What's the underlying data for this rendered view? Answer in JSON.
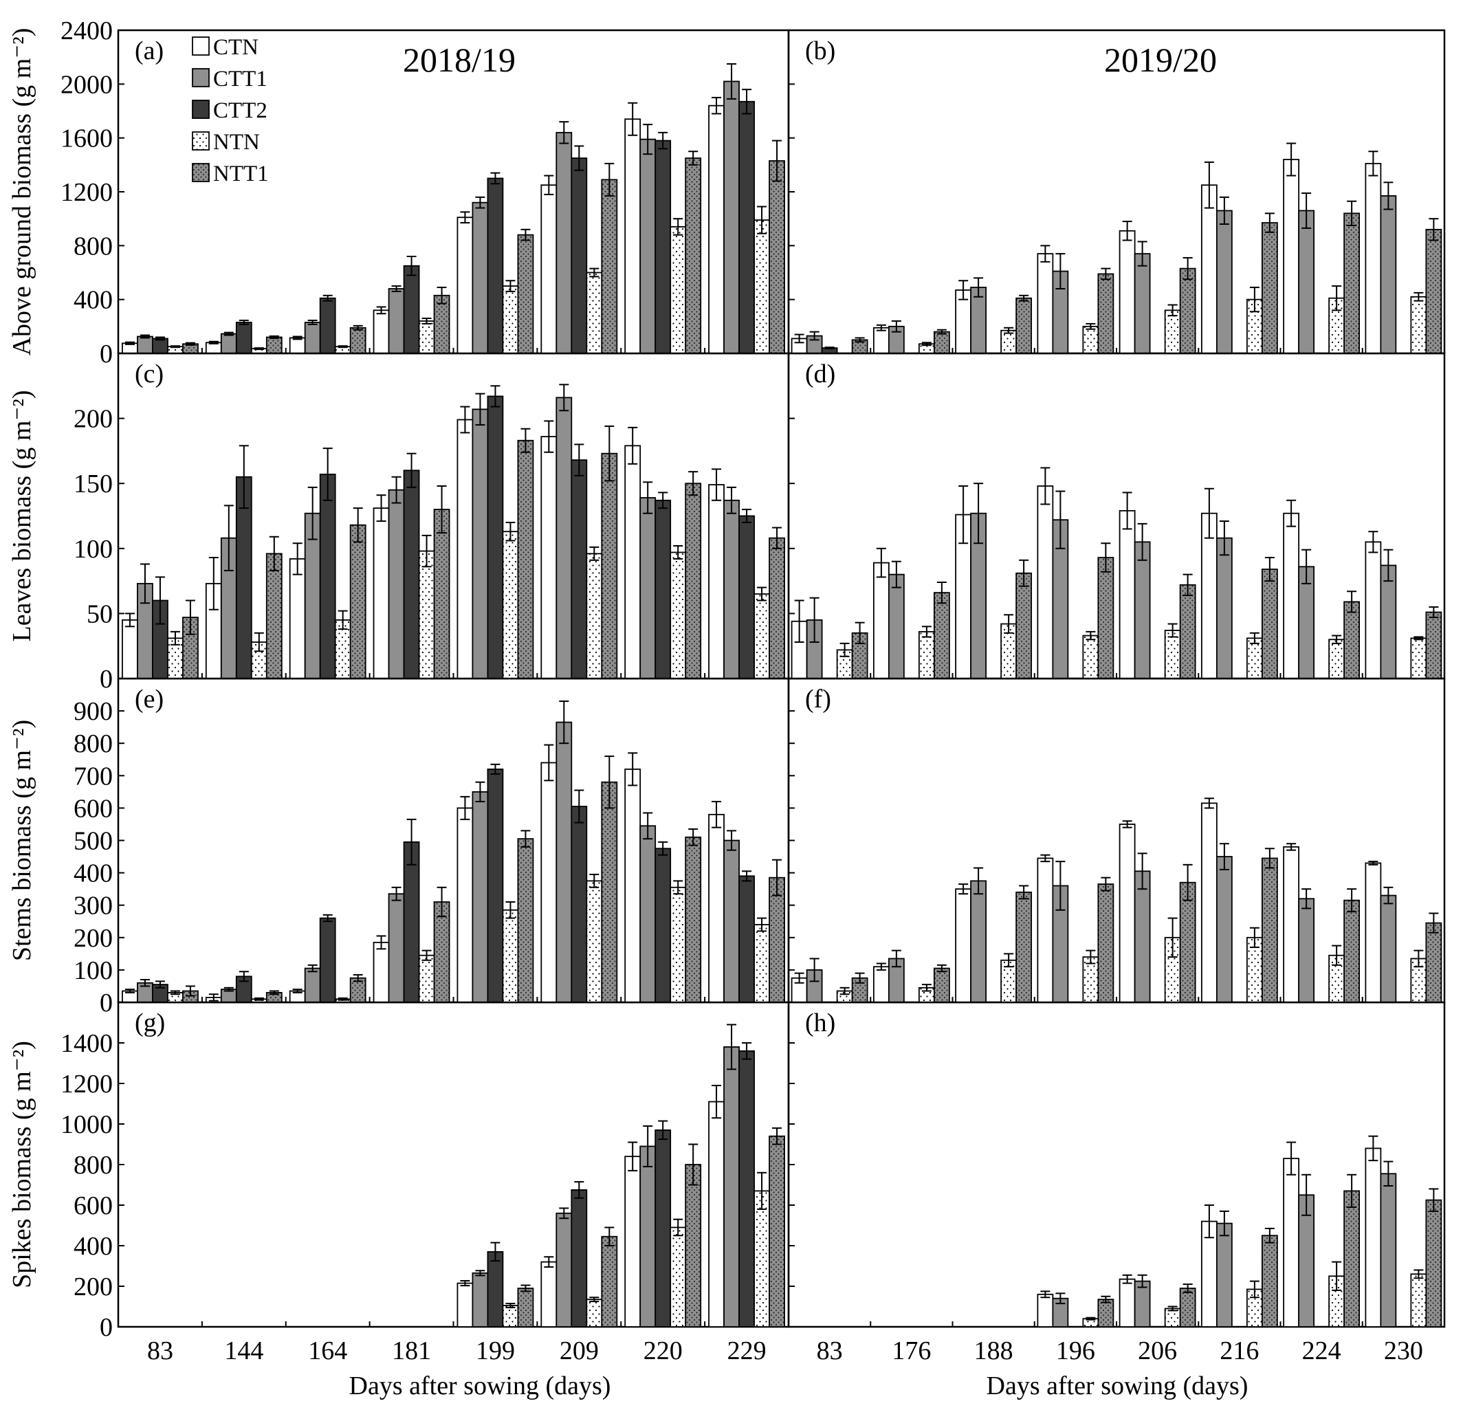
{
  "series_styles": [
    {
      "name": "CTN",
      "fill": "#ffffff",
      "pattern": "none"
    },
    {
      "name": "CTT1",
      "fill": "#8f8f8f",
      "pattern": "none"
    },
    {
      "name": "CTT2",
      "fill": "#3a3a3a",
      "pattern": "none"
    },
    {
      "name": "NTN",
      "fill": "#ffffff",
      "pattern": "dots-sparse"
    },
    {
      "name": "NTT1",
      "fill": "#8f8f8f",
      "pattern": "dots-dense"
    }
  ],
  "xlabel": "Days after sowing (days)",
  "chart_data": [
    {
      "id": "a",
      "panel_label": "(a)",
      "year_label": "2018/19",
      "type": "bar",
      "ylabel": "Above ground biomass (g m⁻²)",
      "ylim": [
        0,
        2400
      ],
      "yticks": [
        0,
        400,
        800,
        1200,
        1600,
        2000,
        2400
      ],
      "categories": [
        "83",
        "144",
        "164",
        "181",
        "199",
        "209",
        "220",
        "229"
      ],
      "series": [
        {
          "name": "CTN",
          "values": [
            75,
            80,
            115,
            320,
            1010,
            1250,
            1740,
            1840
          ],
          "errors": [
            8,
            8,
            10,
            25,
            40,
            70,
            120,
            60
          ]
        },
        {
          "name": "CTT1",
          "values": [
            125,
            145,
            230,
            480,
            1120,
            1640,
            1590,
            2020
          ],
          "errors": [
            10,
            10,
            15,
            20,
            40,
            80,
            110,
            130
          ]
        },
        {
          "name": "CTT2",
          "values": [
            110,
            230,
            410,
            650,
            1300,
            1450,
            1580,
            1870
          ],
          "errors": [
            10,
            15,
            20,
            70,
            40,
            90,
            60,
            90
          ]
        },
        {
          "name": "NTN",
          "values": [
            50,
            35,
            50,
            240,
            500,
            600,
            940,
            990
          ],
          "errors": [
            5,
            5,
            5,
            20,
            40,
            30,
            60,
            100
          ]
        },
        {
          "name": "NTT1",
          "values": [
            70,
            120,
            190,
            430,
            880,
            1290,
            1450,
            1430
          ],
          "errors": [
            8,
            8,
            15,
            60,
            40,
            120,
            50,
            150
          ]
        }
      ]
    },
    {
      "id": "b",
      "panel_label": "(b)",
      "year_label": "2019/20",
      "type": "bar",
      "ylabel": "",
      "ylim": [
        0,
        2400
      ],
      "yticks": [
        0,
        400,
        800,
        1200,
        1600,
        2000,
        2400
      ],
      "categories": [
        "83",
        "176",
        "188",
        "196",
        "206",
        "216",
        "224",
        "230"
      ],
      "series": [
        {
          "name": "CTN",
          "values": [
            110,
            190,
            470,
            740,
            910,
            1250,
            1440,
            1410
          ],
          "errors": [
            30,
            20,
            70,
            60,
            70,
            170,
            120,
            90
          ]
        },
        {
          "name": "CTT1",
          "values": [
            130,
            200,
            490,
            610,
            740,
            1060,
            1060,
            1170
          ],
          "errors": [
            30,
            40,
            70,
            130,
            90,
            100,
            130,
            100
          ]
        },
        {
          "name": "CTT2",
          "values": [
            40,
            0,
            0,
            0,
            0,
            0,
            0,
            0
          ],
          "errors": [
            5,
            0,
            0,
            0,
            0,
            0,
            0,
            0
          ]
        },
        {
          "name": "NTN",
          "values": [
            0,
            70,
            170,
            200,
            320,
            400,
            410,
            420
          ],
          "errors": [
            0,
            10,
            20,
            20,
            40,
            90,
            90,
            30
          ]
        },
        {
          "name": "NTT1",
          "values": [
            100,
            160,
            410,
            590,
            630,
            970,
            1040,
            920
          ],
          "errors": [
            15,
            15,
            20,
            40,
            80,
            70,
            90,
            80
          ]
        }
      ]
    },
    {
      "id": "c",
      "panel_label": "(c)",
      "year_label": "",
      "type": "bar",
      "ylabel": "Leaves biomass (g m⁻²)",
      "ylim": [
        0,
        250
      ],
      "yticks": [
        0,
        50,
        100,
        150,
        200
      ],
      "categories": [
        "83",
        "144",
        "164",
        "181",
        "199",
        "209",
        "220",
        "229"
      ],
      "series": [
        {
          "name": "CTN",
          "values": [
            45,
            73,
            92,
            131,
            199,
            186,
            179,
            149
          ],
          "errors": [
            5,
            20,
            12,
            10,
            10,
            12,
            14,
            12
          ]
        },
        {
          "name": "CTT1",
          "values": [
            73,
            108,
            127,
            145,
            207,
            216,
            139,
            137
          ],
          "errors": [
            15,
            25,
            20,
            10,
            12,
            10,
            12,
            10
          ]
        },
        {
          "name": "CTT2",
          "values": [
            60,
            155,
            157,
            160,
            217,
            168,
            137,
            125
          ],
          "errors": [
            18,
            24,
            20,
            13,
            8,
            12,
            6,
            5
          ]
        },
        {
          "name": "NTN",
          "values": [
            31,
            28,
            45,
            98,
            113,
            96,
            97,
            65
          ],
          "errors": [
            5,
            7,
            7,
            12,
            7,
            5,
            5,
            5
          ]
        },
        {
          "name": "NTT1",
          "values": [
            47,
            96,
            118,
            130,
            183,
            173,
            150,
            108
          ],
          "errors": [
            13,
            13,
            13,
            18,
            9,
            21,
            9,
            8
          ]
        }
      ]
    },
    {
      "id": "d",
      "panel_label": "(d)",
      "year_label": "",
      "type": "bar",
      "ylabel": "",
      "ylim": [
        0,
        250
      ],
      "yticks": [
        0,
        50,
        100,
        150,
        200
      ],
      "categories": [
        "83",
        "176",
        "188",
        "196",
        "206",
        "216",
        "224",
        "230"
      ],
      "series": [
        {
          "name": "CTN",
          "values": [
            44,
            89,
            126,
            148,
            129,
            127,
            127,
            105
          ],
          "errors": [
            16,
            11,
            22,
            14,
            14,
            19,
            10,
            8
          ]
        },
        {
          "name": "CTT1",
          "values": [
            45,
            80,
            127,
            122,
            105,
            108,
            86,
            87
          ],
          "errors": [
            17,
            10,
            23,
            22,
            14,
            13,
            13,
            12
          ]
        },
        {
          "name": "CTT2",
          "values": [
            0,
            0,
            0,
            0,
            0,
            0,
            0,
            0
          ],
          "errors": [
            0,
            0,
            0,
            0,
            0,
            0,
            0,
            0
          ]
        },
        {
          "name": "NTN",
          "values": [
            22,
            36,
            42,
            33,
            37,
            31,
            30,
            31
          ],
          "errors": [
            5,
            4,
            7,
            3,
            5,
            4,
            3,
            1
          ]
        },
        {
          "name": "NTT1",
          "values": [
            35,
            66,
            81,
            93,
            72,
            84,
            59,
            51
          ],
          "errors": [
            8,
            8,
            10,
            11,
            8,
            9,
            8,
            4
          ]
        }
      ]
    },
    {
      "id": "e",
      "panel_label": "(e)",
      "year_label": "",
      "type": "bar",
      "ylabel": "Stems biomass (g m⁻²)",
      "ylim": [
        0,
        1000
      ],
      "yticks": [
        0,
        100,
        200,
        300,
        400,
        500,
        600,
        700,
        800,
        900
      ],
      "categories": [
        "83",
        "144",
        "164",
        "181",
        "199",
        "209",
        "220",
        "229"
      ],
      "series": [
        {
          "name": "CTN",
          "values": [
            35,
            15,
            35,
            185,
            600,
            740,
            720,
            580
          ],
          "errors": [
            5,
            10,
            5,
            20,
            35,
            55,
            50,
            40
          ]
        },
        {
          "name": "CTT1",
          "values": [
            60,
            40,
            105,
            335,
            650,
            865,
            545,
            500
          ],
          "errors": [
            10,
            5,
            10,
            20,
            30,
            65,
            40,
            30
          ]
        },
        {
          "name": "CTT2",
          "values": [
            55,
            80,
            260,
            495,
            720,
            605,
            475,
            390
          ],
          "errors": [
            10,
            15,
            10,
            70,
            15,
            50,
            20,
            15
          ]
        },
        {
          "name": "NTN",
          "values": [
            30,
            10,
            10,
            145,
            285,
            375,
            355,
            240
          ],
          "errors": [
            5,
            3,
            3,
            15,
            25,
            20,
            20,
            20
          ]
        },
        {
          "name": "NTT1",
          "values": [
            35,
            30,
            75,
            310,
            505,
            680,
            510,
            385
          ],
          "errors": [
            15,
            5,
            10,
            45,
            25,
            80,
            25,
            55
          ]
        }
      ]
    },
    {
      "id": "f",
      "panel_label": "(f)",
      "year_label": "",
      "type": "bar",
      "ylabel": "",
      "ylim": [
        0,
        1000
      ],
      "yticks": [
        0,
        100,
        200,
        300,
        400,
        500,
        600,
        700,
        800,
        900
      ],
      "categories": [
        "83",
        "176",
        "188",
        "196",
        "206",
        "216",
        "224",
        "230"
      ],
      "series": [
        {
          "name": "CTN",
          "values": [
            75,
            110,
            350,
            445,
            550,
            615,
            480,
            430
          ],
          "errors": [
            15,
            10,
            15,
            10,
            10,
            15,
            10,
            5
          ]
        },
        {
          "name": "CTT1",
          "values": [
            100,
            135,
            375,
            360,
            405,
            450,
            320,
            330
          ],
          "errors": [
            35,
            25,
            40,
            75,
            55,
            40,
            30,
            25
          ]
        },
        {
          "name": "CTT2",
          "values": [
            0,
            0,
            0,
            0,
            0,
            0,
            0,
            0
          ],
          "errors": [
            0,
            0,
            0,
            0,
            0,
            0,
            0,
            0
          ]
        },
        {
          "name": "NTN",
          "values": [
            35,
            45,
            130,
            140,
            200,
            200,
            145,
            135
          ],
          "errors": [
            10,
            10,
            20,
            20,
            60,
            30,
            30,
            25
          ]
        },
        {
          "name": "NTT1",
          "values": [
            75,
            105,
            340,
            365,
            370,
            445,
            315,
            245
          ],
          "errors": [
            15,
            10,
            20,
            20,
            55,
            30,
            35,
            30
          ]
        }
      ]
    },
    {
      "id": "g",
      "panel_label": "(g)",
      "year_label": "",
      "type": "bar",
      "ylabel": "Spikes biomass (g m⁻²)",
      "ylim": [
        0,
        1600
      ],
      "yticks": [
        0,
        200,
        400,
        600,
        800,
        1000,
        1200,
        1400
      ],
      "categories": [
        "83",
        "144",
        "164",
        "181",
        "199",
        "209",
        "220",
        "229"
      ],
      "series": [
        {
          "name": "CTN",
          "values": [
            0,
            0,
            0,
            0,
            215,
            320,
            840,
            1110
          ],
          "errors": [
            0,
            0,
            0,
            0,
            12,
            25,
            70,
            80
          ]
        },
        {
          "name": "CTT1",
          "values": [
            0,
            0,
            0,
            0,
            265,
            560,
            890,
            1380
          ],
          "errors": [
            0,
            0,
            0,
            0,
            12,
            25,
            100,
            110
          ]
        },
        {
          "name": "CTT2",
          "values": [
            0,
            0,
            0,
            0,
            370,
            675,
            970,
            1360
          ],
          "errors": [
            0,
            0,
            0,
            0,
            45,
            40,
            45,
            40
          ]
        },
        {
          "name": "NTN",
          "values": [
            0,
            0,
            0,
            0,
            105,
            135,
            490,
            670
          ],
          "errors": [
            0,
            0,
            0,
            0,
            10,
            10,
            40,
            90
          ]
        },
        {
          "name": "NTT1",
          "values": [
            0,
            0,
            0,
            0,
            190,
            445,
            800,
            940
          ],
          "errors": [
            0,
            0,
            0,
            0,
            15,
            45,
            100,
            40
          ]
        }
      ]
    },
    {
      "id": "h",
      "panel_label": "(h)",
      "year_label": "",
      "type": "bar",
      "ylabel": "",
      "ylim": [
        0,
        1600
      ],
      "yticks": [
        0,
        200,
        400,
        600,
        800,
        1000,
        1200,
        1400
      ],
      "categories": [
        "83",
        "176",
        "188",
        "196",
        "206",
        "216",
        "224",
        "230"
      ],
      "series": [
        {
          "name": "CTN",
          "values": [
            0,
            0,
            0,
            160,
            235,
            520,
            830,
            880
          ],
          "errors": [
            0,
            0,
            0,
            15,
            20,
            80,
            80,
            60
          ]
        },
        {
          "name": "CTT1",
          "values": [
            0,
            0,
            0,
            140,
            225,
            510,
            650,
            755
          ],
          "errors": [
            0,
            0,
            0,
            25,
            30,
            60,
            100,
            60
          ]
        },
        {
          "name": "CTT2",
          "values": [
            0,
            0,
            0,
            0,
            0,
            0,
            0,
            0
          ],
          "errors": [
            0,
            0,
            0,
            0,
            0,
            0,
            0,
            0
          ]
        },
        {
          "name": "NTN",
          "values": [
            0,
            0,
            0,
            40,
            90,
            185,
            250,
            260
          ],
          "errors": [
            0,
            0,
            0,
            5,
            10,
            40,
            70,
            20
          ]
        },
        {
          "name": "NTT1",
          "values": [
            0,
            0,
            0,
            135,
            190,
            450,
            670,
            625
          ],
          "errors": [
            0,
            0,
            0,
            15,
            20,
            35,
            80,
            55
          ]
        }
      ]
    }
  ]
}
